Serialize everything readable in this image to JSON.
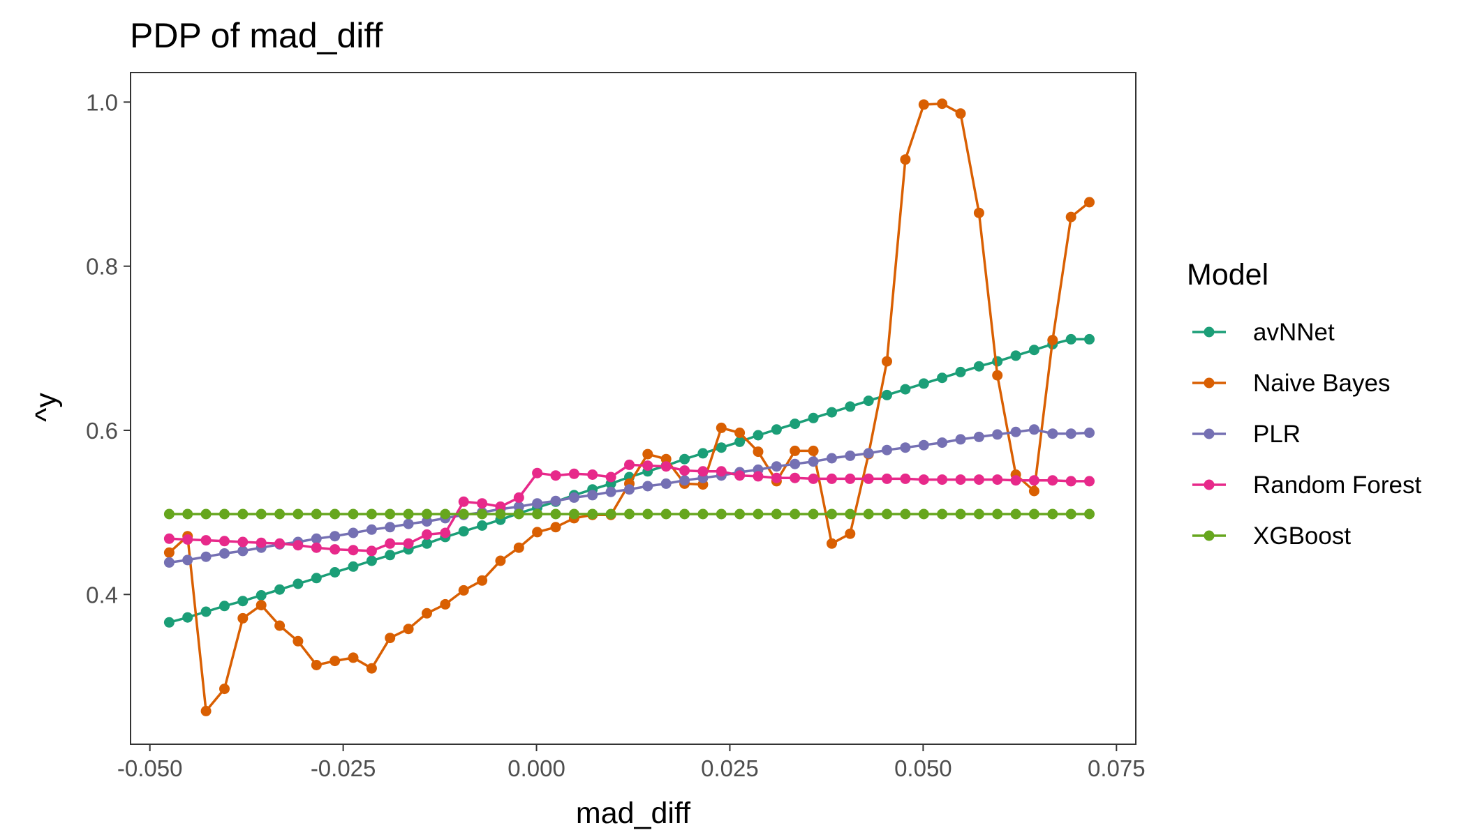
{
  "chart_data": {
    "type": "line",
    "title": "PDP of mad_diff",
    "xlabel": "mad_diff",
    "ylabel": "^y",
    "xlim": [
      -0.0525,
      0.0775
    ],
    "ylim": [
      0.2175,
      1.036
    ],
    "x_ticks": [
      -0.05,
      -0.025,
      0.0,
      0.025,
      0.05,
      0.075
    ],
    "x_tick_labels": [
      "-0.050",
      "-0.025",
      "0.000",
      "0.025",
      "0.050",
      "0.075"
    ],
    "y_ticks": [
      0.4,
      0.6,
      0.8,
      1.0
    ],
    "y_tick_labels": [
      "0.4",
      "0.6",
      "0.8",
      "1.0"
    ],
    "grid": false,
    "legend": {
      "title": "Model",
      "placement": "right"
    },
    "x_start": -0.0475,
    "x_step": 0.00238,
    "series": [
      {
        "name": "avNNet",
        "color": "#1b9e77",
        "values": [
          0.366,
          0.372,
          0.379,
          0.386,
          0.392,
          0.399,
          0.406,
          0.413,
          0.42,
          0.427,
          0.434,
          0.441,
          0.448,
          0.455,
          0.462,
          0.47,
          0.477,
          0.484,
          0.491,
          0.499,
          0.506,
          0.513,
          0.521,
          0.528,
          0.535,
          0.543,
          0.55,
          0.557,
          0.565,
          0.572,
          0.579,
          0.586,
          0.594,
          0.601,
          0.608,
          0.615,
          0.622,
          0.629,
          0.636,
          0.643,
          0.65,
          0.657,
          0.664,
          0.671,
          0.678,
          0.684,
          0.691,
          0.698,
          0.705,
          0.711,
          0.711
        ]
      },
      {
        "name": "Naive Bayes",
        "color": "#d95f02",
        "values": [
          0.451,
          0.471,
          0.258,
          0.285,
          0.371,
          0.387,
          0.362,
          0.343,
          0.314,
          0.319,
          0.323,
          0.31,
          0.347,
          0.358,
          0.377,
          0.388,
          0.405,
          0.417,
          0.441,
          0.457,
          0.476,
          0.482,
          0.493,
          0.497,
          0.497,
          0.535,
          0.571,
          0.565,
          0.535,
          0.534,
          0.603,
          0.597,
          0.574,
          0.538,
          0.575,
          0.575,
          0.462,
          0.474,
          0.571,
          0.684,
          0.93,
          0.997,
          0.998,
          0.986,
          0.865,
          0.667,
          0.546,
          0.526,
          0.71,
          0.86,
          0.878
        ]
      },
      {
        "name": "PLR",
        "color": "#7570b3",
        "values": [
          0.439,
          0.442,
          0.446,
          0.45,
          0.453,
          0.457,
          0.461,
          0.464,
          0.468,
          0.471,
          0.475,
          0.479,
          0.482,
          0.486,
          0.489,
          0.493,
          0.497,
          0.5,
          0.504,
          0.507,
          0.511,
          0.514,
          0.518,
          0.521,
          0.525,
          0.528,
          0.532,
          0.535,
          0.539,
          0.542,
          0.545,
          0.549,
          0.552,
          0.556,
          0.559,
          0.562,
          0.566,
          0.569,
          0.572,
          0.576,
          0.579,
          0.582,
          0.585,
          0.589,
          0.592,
          0.595,
          0.598,
          0.601,
          0.596,
          0.596,
          0.597
        ]
      },
      {
        "name": "Random Forest",
        "color": "#e7298a",
        "values": [
          0.468,
          0.467,
          0.466,
          0.465,
          0.464,
          0.463,
          0.462,
          0.46,
          0.457,
          0.455,
          0.454,
          0.453,
          0.462,
          0.462,
          0.473,
          0.475,
          0.513,
          0.511,
          0.507,
          0.518,
          0.548,
          0.545,
          0.547,
          0.546,
          0.543,
          0.558,
          0.557,
          0.556,
          0.551,
          0.55,
          0.55,
          0.545,
          0.544,
          0.542,
          0.542,
          0.541,
          0.541,
          0.541,
          0.541,
          0.541,
          0.541,
          0.54,
          0.54,
          0.54,
          0.54,
          0.54,
          0.539,
          0.539,
          0.539,
          0.538,
          0.538
        ]
      },
      {
        "name": "XGBoost",
        "color": "#66a61e",
        "values": [
          0.498,
          0.498,
          0.498,
          0.498,
          0.498,
          0.498,
          0.498,
          0.498,
          0.498,
          0.498,
          0.498,
          0.498,
          0.498,
          0.498,
          0.498,
          0.498,
          0.498,
          0.498,
          0.498,
          0.498,
          0.498,
          0.498,
          0.498,
          0.498,
          0.498,
          0.498,
          0.498,
          0.498,
          0.498,
          0.498,
          0.498,
          0.498,
          0.498,
          0.498,
          0.498,
          0.498,
          0.498,
          0.498,
          0.498,
          0.498,
          0.498,
          0.498,
          0.498,
          0.498,
          0.498,
          0.498,
          0.498,
          0.498,
          0.498,
          0.498,
          0.498
        ]
      }
    ]
  }
}
